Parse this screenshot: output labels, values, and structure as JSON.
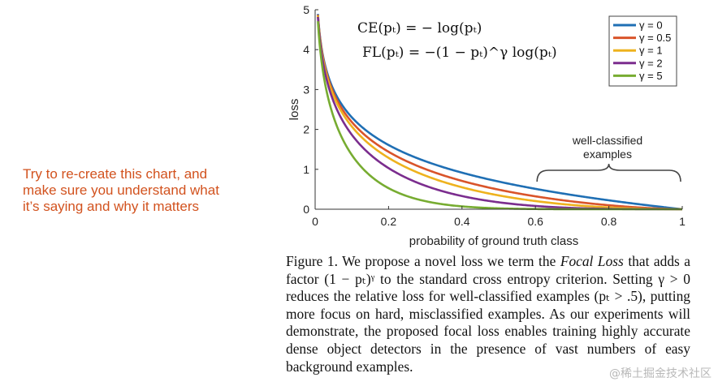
{
  "side_note": {
    "lines": [
      "Try to re-create this chart, and",
      "make sure you understand what",
      "it’s saying and why it matters"
    ]
  },
  "chart_data": {
    "type": "line",
    "xlabel": "probability of ground truth class",
    "ylabel": "loss",
    "xlim": [
      0,
      1
    ],
    "ylim": [
      0,
      5
    ],
    "x_ticks": [
      "0",
      "0.2",
      "0.4",
      "0.6",
      "0.8",
      "1"
    ],
    "y_ticks": [
      "0",
      "1",
      "2",
      "3",
      "4",
      "5"
    ],
    "grid": false,
    "legend_position": "top-right",
    "equations": [
      "CE(pₜ) = − log(pₜ)",
      "FL(pₜ) = −(1 − pₜ)^γ log(pₜ)"
    ],
    "annotation": {
      "line1": "well-classified",
      "line2": "examples",
      "x_range": [
        0.6,
        1.0
      ]
    },
    "series": [
      {
        "name": "γ = 0",
        "gamma": 0,
        "color": "#1f6fb4"
      },
      {
        "name": "γ = 0.5",
        "gamma": 0.5,
        "color": "#d9542a"
      },
      {
        "name": "γ = 1",
        "gamma": 1,
        "color": "#eeb21e"
      },
      {
        "name": "γ = 2",
        "gamma": 2,
        "color": "#7b2d8e"
      },
      {
        "name": "γ = 5",
        "gamma": 5,
        "color": "#77ac31"
      }
    ]
  },
  "caption": {
    "p1": "Figure 1. We propose a novel loss we term the ",
    "focal": "Focal Loss",
    "p2": " that adds a factor (1 − pₜ)ᵞ to the standard cross entropy criterion. Setting γ > 0 reduces the relative loss for well-classified examples (pₜ > .5), putting more focus on hard, misclassified examples. As our experiments will demonstrate, the proposed focal loss enables training highly accurate dense object detectors in the presence of vast numbers of easy background examples."
  },
  "watermark": "@稀土掘金技术社区"
}
